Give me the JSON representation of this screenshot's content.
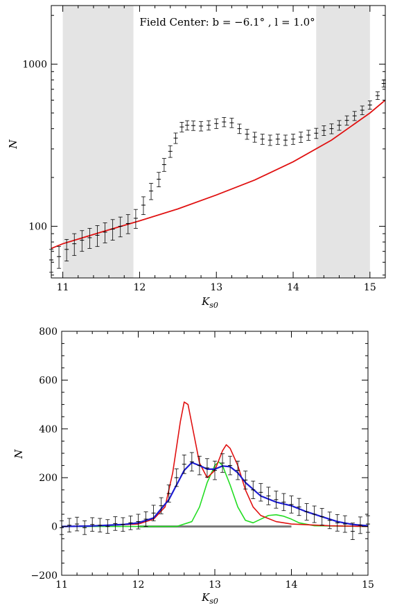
{
  "chart_data": [
    {
      "type": "line",
      "panel": "top",
      "yscale": "log",
      "xlim": [
        10.85,
        15.2
      ],
      "ylim": [
        48,
        2300
      ],
      "xticks": [
        11,
        12,
        13,
        14,
        15
      ],
      "yticks_major": [
        100,
        1000
      ],
      "xlabel": {
        "main": "K",
        "sub": "s0"
      },
      "ylabel": "N",
      "annotation": "Field Center: b = −6.1° , l = 1.0°",
      "shaded_ranges": [
        [
          11.0,
          11.92
        ],
        [
          14.3,
          15.0
        ]
      ],
      "colors": {
        "shade": "#e4e4e4",
        "fit": "#e01010",
        "data": "#000000"
      },
      "fit_curve": {
        "name": "",
        "x": [
          10.85,
          11.0,
          11.5,
          12.0,
          12.5,
          13.0,
          13.5,
          14.0,
          14.5,
          15.0,
          15.2
        ],
        "y": [
          73,
          78,
          92,
          108,
          128,
          156,
          193,
          250,
          340,
          500,
          600
        ]
      },
      "observed": {
        "x": [
          10.85,
          10.95,
          11.05,
          11.15,
          11.25,
          11.35,
          11.45,
          11.55,
          11.65,
          11.75,
          11.85,
          11.95,
          12.05,
          12.15,
          12.25,
          12.32,
          12.4,
          12.47,
          12.55,
          12.62,
          12.7,
          12.8,
          12.9,
          13.0,
          13.1,
          13.2,
          13.3,
          13.4,
          13.5,
          13.6,
          13.7,
          13.8,
          13.9,
          14.0,
          14.1,
          14.2,
          14.3,
          14.4,
          14.5,
          14.6,
          14.7,
          14.8,
          14.9,
          15.0,
          15.1,
          15.18
        ],
        "y": [
          62,
          65,
          72,
          78,
          82,
          85,
          88,
          92,
          96,
          100,
          104,
          112,
          135,
          165,
          195,
          240,
          290,
          350,
          410,
          420,
          418,
          415,
          420,
          430,
          440,
          435,
          400,
          370,
          355,
          345,
          340,
          345,
          340,
          345,
          355,
          365,
          375,
          390,
          400,
          420,
          450,
          480,
          520,
          560,
          640,
          760
        ],
        "err": [
          10,
          10,
          11,
          12,
          12,
          12,
          13,
          13,
          14,
          14,
          14,
          15,
          17,
          19,
          20,
          22,
          24,
          26,
          28,
          28,
          28,
          28,
          28,
          29,
          29,
          29,
          27,
          26,
          25,
          25,
          25,
          25,
          25,
          25,
          26,
          26,
          27,
          27,
          28,
          29,
          30,
          31,
          32,
          33,
          35,
          38
        ]
      }
    },
    {
      "type": "line",
      "panel": "bottom",
      "xlim": [
        11,
        15
      ],
      "ylim": [
        -200,
        800
      ],
      "xticks": [
        11,
        12,
        13,
        14,
        15
      ],
      "yticks_major": [
        -200,
        0,
        200,
        400,
        600,
        800
      ],
      "xlabel": {
        "main": "K",
        "sub": "s0"
      },
      "ylabel": "N",
      "colors": {
        "red": "#e01010",
        "blue": "#1c1cd0",
        "green": "#22dd22",
        "zero": "#777777",
        "data": "#000000"
      },
      "observed": {
        "x": [
          11.0,
          11.1,
          11.2,
          11.3,
          11.4,
          11.5,
          11.6,
          11.7,
          11.8,
          11.9,
          12.0,
          12.1,
          12.2,
          12.3,
          12.4,
          12.5,
          12.6,
          12.7,
          12.8,
          12.9,
          13.0,
          13.1,
          13.2,
          13.3,
          13.4,
          13.5,
          13.6,
          13.7,
          13.8,
          13.9,
          14.0,
          14.1,
          14.2,
          14.3,
          14.4,
          14.5,
          14.6,
          14.7,
          14.8,
          14.9,
          15.0
        ],
        "y": [
          -5,
          5,
          10,
          -5,
          8,
          5,
          0,
          12,
          8,
          15,
          20,
          30,
          55,
          85,
          135,
          200,
          255,
          265,
          250,
          240,
          230,
          260,
          250,
          230,
          190,
          150,
          140,
          125,
          110,
          100,
          90,
          80,
          60,
          50,
          40,
          25,
          15,
          10,
          -20,
          5,
          10
        ],
        "err": [
          28,
          28,
          28,
          28,
          28,
          28,
          28,
          28,
          28,
          28,
          30,
          30,
          32,
          33,
          35,
          36,
          38,
          38,
          38,
          38,
          38,
          38,
          38,
          38,
          37,
          36,
          36,
          36,
          35,
          35,
          35,
          35,
          34,
          34,
          34,
          34,
          34,
          34,
          34,
          34,
          34
        ]
      },
      "models": {
        "blue": {
          "x": [
            11.0,
            11.4,
            11.8,
            12.0,
            12.2,
            12.4,
            12.6,
            12.7,
            12.8,
            12.9,
            13.0,
            13.1,
            13.2,
            13.3,
            13.4,
            13.6,
            13.8,
            14.0,
            14.2,
            14.4,
            14.6,
            14.8,
            15.0
          ],
          "y": [
            0,
            2,
            8,
            15,
            35,
            110,
            230,
            262,
            250,
            235,
            235,
            248,
            245,
            220,
            180,
            125,
            100,
            85,
            60,
            40,
            20,
            8,
            3
          ]
        },
        "red": {
          "x": [
            11.0,
            11.5,
            12.0,
            12.2,
            12.35,
            12.45,
            12.55,
            12.6,
            12.65,
            12.7,
            12.8,
            12.9,
            13.0,
            13.1,
            13.15,
            13.2,
            13.3,
            13.4,
            13.5,
            13.6,
            13.8,
            14.0,
            14.5,
            15.0
          ],
          "y": [
            0,
            3,
            10,
            30,
            80,
            220,
            430,
            510,
            500,
            420,
            260,
            200,
            230,
            310,
            335,
            320,
            250,
            150,
            80,
            45,
            20,
            10,
            3,
            0
          ],
          "note": "Red model curve; its values peak near 510 at K=12.6."
        },
        "green": {
          "x": [
            11.0,
            12.5,
            12.7,
            12.8,
            12.9,
            13.0,
            13.05,
            13.1,
            13.2,
            13.3,
            13.4,
            13.5,
            13.6,
            13.7,
            13.8,
            13.9,
            14.0,
            14.1,
            14.3,
            15.0
          ],
          "y": [
            0,
            0,
            20,
            80,
            180,
            250,
            265,
            250,
            170,
            80,
            25,
            15,
            30,
            45,
            48,
            42,
            30,
            15,
            3,
            0
          ]
        },
        "zero_line": {
          "x": [
            12.0,
            14.0
          ],
          "y": [
            0,
            0
          ]
        }
      }
    }
  ]
}
